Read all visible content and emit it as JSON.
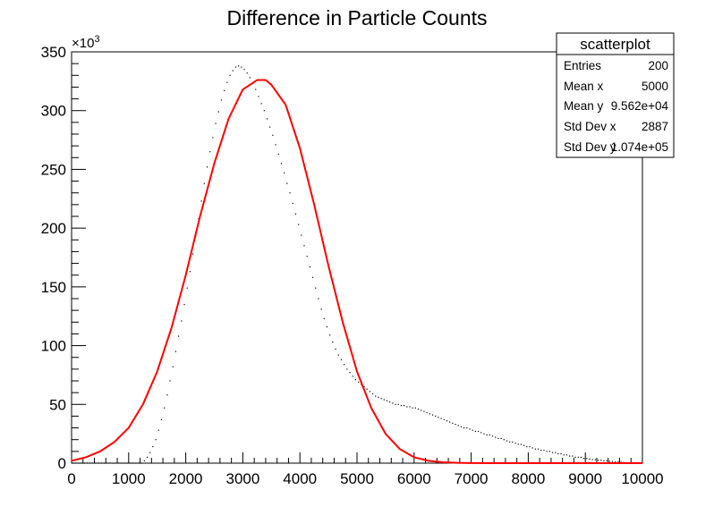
{
  "chart_data": {
    "type": "scatter",
    "title": "Difference in Particle Counts",
    "xlabel": "",
    "ylabel": "",
    "x_range": [
      0,
      10000
    ],
    "y_range": [
      0,
      350000
    ],
    "y_multiplier_label": "×10",
    "y_multiplier_exponent": "3",
    "x_ticks": [
      0,
      1000,
      2000,
      3000,
      4000,
      5000,
      6000,
      7000,
      8000,
      9000,
      10000
    ],
    "x_tick_labels": [
      "0",
      "1000",
      "2000",
      "3000",
      "4000",
      "5000",
      "6000",
      "7000",
      "8000",
      "9000",
      "10000"
    ],
    "y_ticks": [
      0,
      50000,
      100000,
      150000,
      200000,
      250000,
      300000,
      350000
    ],
    "y_tick_labels": [
      "0",
      "50",
      "100",
      "150",
      "200",
      "250",
      "300",
      "350"
    ],
    "grid": false,
    "series": [
      {
        "style": "dots",
        "color": "#000000",
        "x": [
          25,
          75,
          125,
          175,
          225,
          275,
          325,
          375,
          425,
          475,
          525,
          575,
          625,
          675,
          725,
          775,
          825,
          875,
          925,
          975,
          1025,
          1075,
          1125,
          1175,
          1225,
          1275,
          1325,
          1375,
          1425,
          1475,
          1525,
          1575,
          1625,
          1675,
          1725,
          1775,
          1825,
          1875,
          1925,
          1975,
          2025,
          2075,
          2125,
          2175,
          2225,
          2275,
          2325,
          2375,
          2425,
          2475,
          2525,
          2575,
          2625,
          2675,
          2725,
          2775,
          2825,
          2875,
          2925,
          2975,
          3025,
          3075,
          3125,
          3175,
          3225,
          3275,
          3325,
          3375,
          3425,
          3475,
          3525,
          3575,
          3625,
          3675,
          3725,
          3775,
          3825,
          3875,
          3925,
          3975,
          4025,
          4075,
          4125,
          4175,
          4225,
          4275,
          4325,
          4375,
          4425,
          4475,
          4525,
          4575,
          4625,
          4675,
          4725,
          4775,
          4825,
          4875,
          4925,
          4975,
          5025,
          5075,
          5125,
          5175,
          5225,
          5275,
          5325,
          5375,
          5425,
          5475,
          5525,
          5575,
          5625,
          5675,
          5725,
          5775,
          5825,
          5875,
          5925,
          5975,
          6025,
          6075,
          6125,
          6175,
          6225,
          6275,
          6325,
          6375,
          6425,
          6475,
          6525,
          6575,
          6625,
          6675,
          6725,
          6775,
          6825,
          6875,
          6925,
          6975,
          7025,
          7075,
          7125,
          7175,
          7225,
          7275,
          7325,
          7375,
          7425,
          7475,
          7525,
          7575,
          7625,
          7675,
          7725,
          7775,
          7825,
          7875,
          7925,
          7975,
          8025,
          8075,
          8125,
          8175,
          8225,
          8275,
          8325,
          8375,
          8425,
          8475,
          8525,
          8575,
          8625,
          8675,
          8725,
          8775,
          8825,
          8875,
          8925,
          8975,
          9025,
          9075,
          9125,
          9175,
          9225,
          9275,
          9325,
          9375,
          9425,
          9475,
          9525,
          9575,
          9625,
          9675,
          9725,
          9775,
          9825,
          9875,
          9925,
          9975
        ],
        "y": [
          0,
          0,
          0,
          0,
          0,
          0,
          0,
          0,
          0,
          0,
          0,
          0,
          0,
          0,
          0,
          0,
          0,
          0,
          0,
          0,
          0,
          0,
          0,
          0,
          0,
          2000,
          5000,
          9000,
          14000,
          20000,
          28000,
          37000,
          47000,
          58000,
          70000,
          82000,
          95000,
          108000,
          121000,
          135000,
          149000,
          163000,
          178000,
          193000,
          208000,
          223000,
          238000,
          252000,
          265000,
          277000,
          289000,
          299000,
          309000,
          317000,
          324000,
          330000,
          334000,
          337000,
          338000,
          337000,
          335000,
          332000,
          328000,
          323000,
          318000,
          312000,
          306000,
          300000,
          293000,
          286000,
          279000,
          271000,
          263000,
          255000,
          247000,
          238000,
          230000,
          221000,
          212000,
          203000,
          194000,
          185000,
          176000,
          167000,
          158000,
          149000,
          140000,
          131000,
          123000,
          116000,
          109000,
          103000,
          97000,
          92000,
          88000,
          84000,
          80000,
          77000,
          74000,
          71000,
          69000,
          67000,
          65000,
          63000,
          61000,
          59000,
          57000,
          56000,
          55000,
          54000,
          53000,
          52000,
          51000,
          50000,
          50000,
          49000,
          49000,
          48000,
          48000,
          47000,
          47000,
          46000,
          45000,
          44000,
          43000,
          42000,
          41000,
          40000,
          39000,
          38000,
          37000,
          36000,
          35000,
          34000,
          33000,
          32000,
          31000,
          30000,
          30000,
          29000,
          28000,
          27000,
          27000,
          26000,
          25000,
          24000,
          24000,
          23000,
          22000,
          21000,
          21000,
          20000,
          19000,
          18000,
          18000,
          17000,
          16000,
          16000,
          15000,
          14000,
          14000,
          13000,
          12000,
          12000,
          11000,
          11000,
          10000,
          10000,
          9000,
          9000,
          8000,
          8000,
          7000,
          7000,
          6000,
          6000,
          5000,
          5000,
          5000,
          4000,
          4000,
          3500,
          3000,
          3000,
          2500,
          2500,
          2000,
          2000,
          1500,
          1500,
          1000,
          1000,
          800,
          600,
          400,
          300,
          200,
          100,
          50,
          0
        ]
      },
      {
        "style": "line",
        "color": "#ff0000",
        "x": [
          0,
          250,
          500,
          750,
          1000,
          1250,
          1500,
          1750,
          2000,
          2250,
          2500,
          2750,
          3000,
          3250,
          3400,
          3500,
          3750,
          4000,
          4250,
          4500,
          4750,
          5000,
          5250,
          5500,
          5750,
          6000,
          6250,
          6500,
          6750,
          7000,
          7500,
          8000,
          8500,
          9000,
          9500,
          10000
        ],
        "y": [
          2000,
          5000,
          10000,
          18000,
          30000,
          50000,
          78000,
          115000,
          160000,
          210000,
          255000,
          293000,
          318000,
          326000,
          326000,
          322000,
          305000,
          268000,
          220000,
          168000,
          120000,
          78000,
          47000,
          25000,
          12000,
          5000,
          2000,
          800,
          300,
          100,
          20,
          0,
          0,
          0,
          0,
          0
        ]
      }
    ],
    "stats_box": {
      "title": "scatterplot",
      "rows": [
        {
          "label": "Entries",
          "value": "200"
        },
        {
          "label": "Mean x",
          "value": "5000"
        },
        {
          "label": "Mean y",
          "value": "9.562e+04"
        },
        {
          "label": "Std Dev x",
          "value": "2887"
        },
        {
          "label": "Std Dev y",
          "value": "1.074e+05"
        }
      ]
    }
  }
}
